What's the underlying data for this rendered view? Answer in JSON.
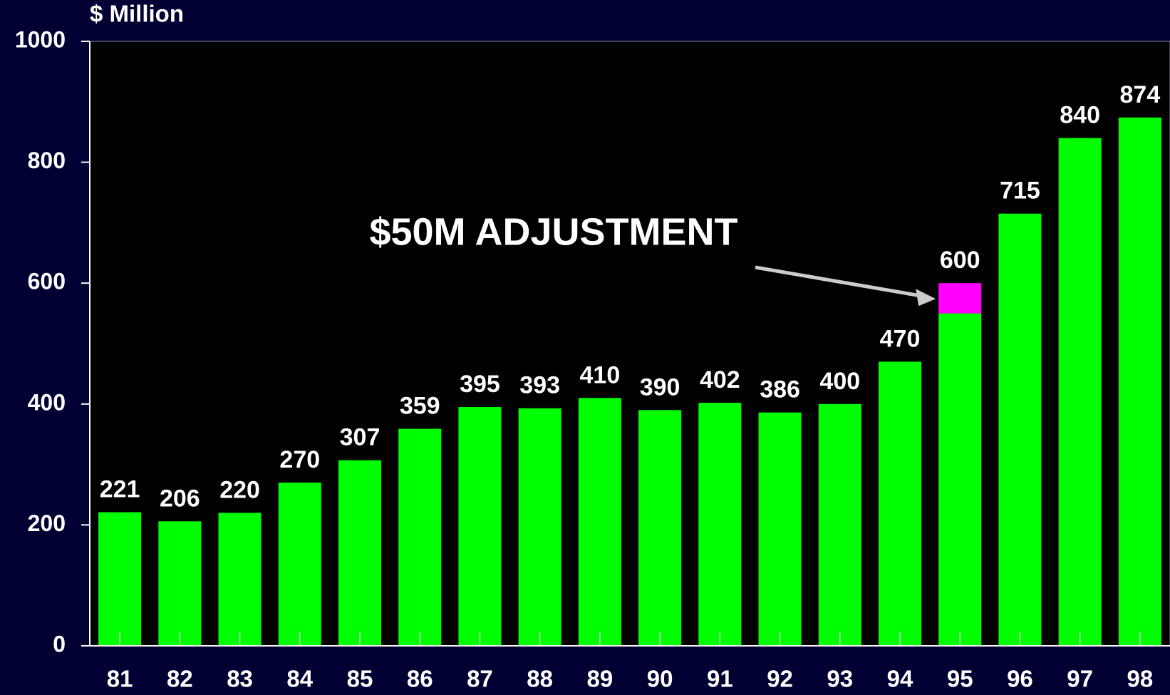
{
  "chart_data": {
    "type": "bar",
    "y_axis_label": "$ Million",
    "categories": [
      "81",
      "82",
      "83",
      "84",
      "85",
      "86",
      "87",
      "88",
      "89",
      "90",
      "91",
      "92",
      "93",
      "94",
      "95",
      "96",
      "97",
      "98"
    ],
    "values": [
      221,
      206,
      220,
      270,
      307,
      359,
      395,
      393,
      410,
      390,
      402,
      386,
      400,
      470,
      600,
      715,
      840,
      874
    ],
    "color": "#00ff00",
    "ylim": [
      0,
      1000
    ],
    "yticks": [
      0,
      200,
      400,
      600,
      800,
      1000
    ],
    "annotation": {
      "text": "$50M ADJUSTMENT",
      "category": "95",
      "value": 50,
      "color": "#ff00ff"
    }
  }
}
